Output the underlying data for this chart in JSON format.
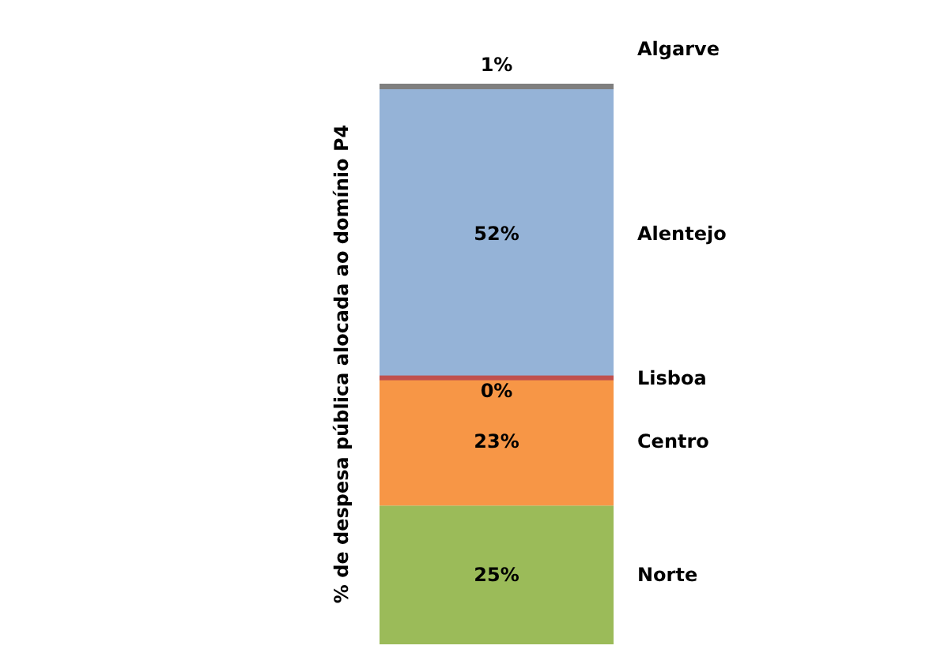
{
  "chart_data": {
    "type": "bar",
    "stacked": true,
    "ylabel": "% de despesa  pública  alocada ao domínio P4",
    "categories": [
      null
    ],
    "series": [
      {
        "name": "Norte",
        "color": "#9bbb59",
        "values": [
          25
        ],
        "value_labels": [
          "25%"
        ]
      },
      {
        "name": "Centro",
        "color": "#f79646",
        "values": [
          23
        ],
        "value_labels": [
          "23%"
        ]
      },
      {
        "name": "Lisboa",
        "color": "#c0504d",
        "values": [
          0
        ],
        "value_labels": [
          "0%"
        ]
      },
      {
        "name": "Alentejo",
        "color": "#95b3d7",
        "values": [
          52
        ],
        "value_labels": [
          "52%"
        ]
      },
      {
        "name": "Algarve",
        "color": "#7f7f7f",
        "values": [
          1
        ],
        "value_labels": [
          "1%"
        ]
      }
    ]
  }
}
